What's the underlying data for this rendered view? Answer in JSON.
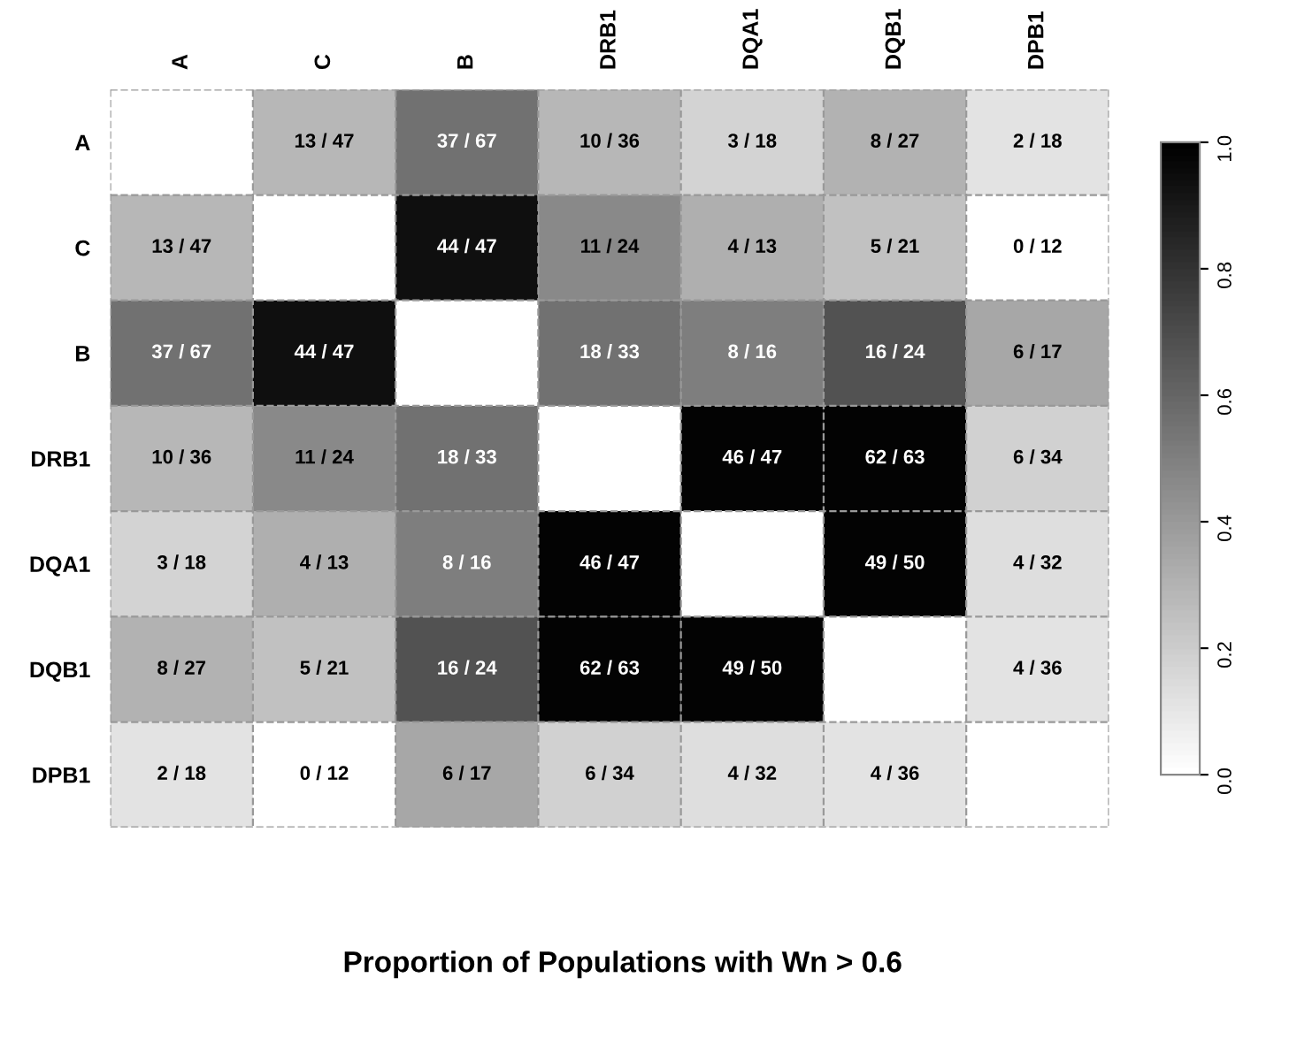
{
  "chart_data": {
    "type": "heatmap",
    "title": "Proportion of Populations with Wn > 0.6",
    "categories": [
      "A",
      "C",
      "B",
      "DRB1",
      "DQA1",
      "DQB1",
      "DPB1"
    ],
    "y_categories": [
      "A",
      "C",
      "B",
      "DRB1",
      "DQA1",
      "DQB1",
      "DPB1"
    ],
    "cells": [
      [
        null,
        0.28,
        0.55,
        0.28,
        0.17,
        0.3,
        0.11
      ],
      [
        0.28,
        null,
        0.94,
        0.46,
        0.31,
        0.24,
        0.0
      ],
      [
        0.55,
        0.94,
        null,
        0.55,
        0.5,
        0.67,
        0.35
      ],
      [
        0.28,
        0.46,
        0.55,
        null,
        0.98,
        0.98,
        0.18
      ],
      [
        0.17,
        0.31,
        0.5,
        0.98,
        null,
        0.98,
        0.13
      ],
      [
        0.3,
        0.24,
        0.67,
        0.98,
        0.98,
        null,
        0.11
      ],
      [
        0.11,
        0.0,
        0.35,
        0.18,
        0.13,
        0.11,
        null
      ]
    ],
    "cell_labels": [
      [
        null,
        "13 / 47",
        "37 / 67",
        "10 / 36",
        "3 / 18",
        "8 / 27",
        "2 / 18"
      ],
      [
        "13 / 47",
        null,
        "44 / 47",
        "11 / 24",
        "4 / 13",
        "5 / 21",
        "0 / 12"
      ],
      [
        "37 / 67",
        "44 / 47",
        null,
        "18 / 33",
        "8 / 16",
        "16 / 24",
        "6 / 17"
      ],
      [
        "10 / 36",
        "11 / 24",
        "18 / 33",
        null,
        "46 / 47",
        "62 / 63",
        "6 / 34"
      ],
      [
        "3 / 18",
        "4 / 13",
        "8 / 16",
        "46 / 47",
        null,
        "49 / 50",
        "4 / 32"
      ],
      [
        "8 / 27",
        "5 / 21",
        "16 / 24",
        "62 / 63",
        "49 / 50",
        null,
        "4 / 36"
      ],
      [
        "2 / 18",
        "0 / 12",
        "6 / 17",
        "6 / 34",
        "4 / 32",
        "4 / 36",
        null
      ]
    ],
    "clim": [
      0,
      1
    ],
    "cticks": [
      {
        "value": 0,
        "label": "0.0"
      },
      {
        "value": 0.2,
        "label": "0.2"
      },
      {
        "value": 0.4,
        "label": "0.4"
      },
      {
        "value": 0.6,
        "label": "0.6"
      },
      {
        "value": 0.8,
        "label": "0.8"
      },
      {
        "value": 1,
        "label": "1.0"
      }
    ],
    "grid": true
  }
}
